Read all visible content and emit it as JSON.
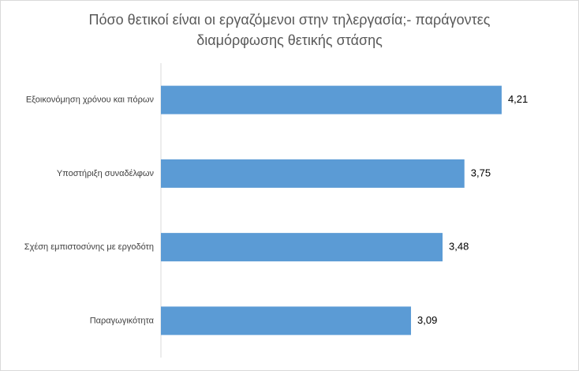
{
  "chart_data": {
    "type": "bar",
    "orientation": "horizontal",
    "title": [
      "Πόσο θετικοί είναι οι εργαζόμενοι στην τηλεργασία;- παράγοντες",
      "διαμόρφωσης θετικής στάσης"
    ],
    "categories": [
      "Εξοικονόμηση χρόνου και πόρων",
      "Υποστήριξη συναδέλφων",
      "Σχέση εμπιστοσύνης με εργοδότη",
      "Παραγωγικότητα"
    ],
    "values": [
      4.21,
      3.75,
      3.48,
      3.09
    ],
    "value_labels": [
      "4,21",
      "3,75",
      "3,48",
      "3,09"
    ],
    "color": "#5b9bd5",
    "xlim": [
      0,
      5
    ]
  }
}
